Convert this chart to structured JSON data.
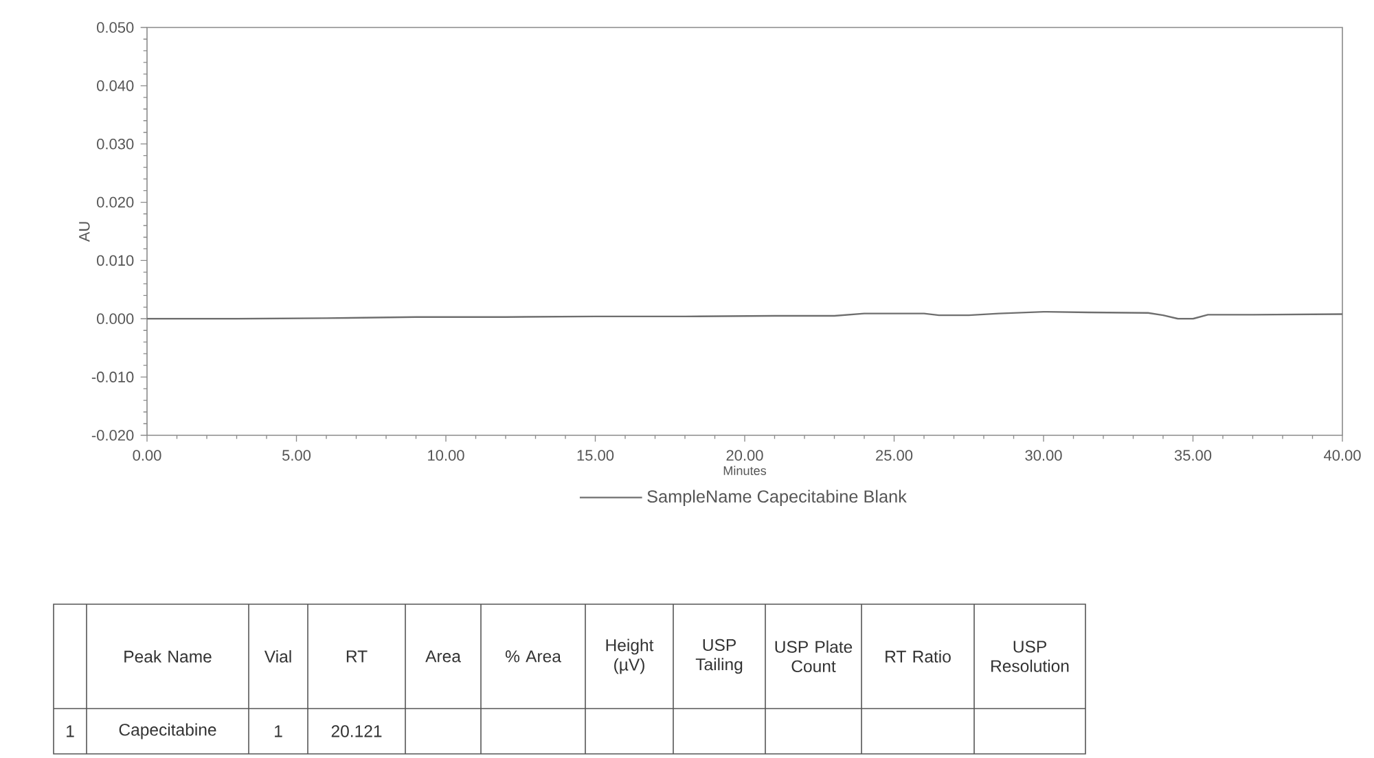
{
  "chart_data": {
    "type": "line",
    "xlabel": "Minutes",
    "ylabel": "AU",
    "x": [
      0,
      3,
      6,
      9,
      12,
      15,
      18,
      21,
      23,
      24,
      26,
      26.5,
      27.5,
      28.5,
      30,
      31.5,
      33.5,
      34,
      34.5,
      35,
      35.5,
      37,
      40
    ],
    "series": [
      {
        "name": "SampleName Capecitabine Blank",
        "color": "#6e6e6e",
        "values": [
          0.0,
          0.0,
          0.0001,
          0.0003,
          0.0003,
          0.0004,
          0.0004,
          0.0005,
          0.0005,
          0.0009,
          0.0009,
          0.0006,
          0.0006,
          0.0009,
          0.0012,
          0.0011,
          0.001,
          0.0006,
          0.0,
          0.0,
          0.0007,
          0.0007,
          0.0008
        ]
      }
    ],
    "xlim": [
      0,
      40
    ],
    "ylim": [
      -0.02,
      0.05
    ],
    "xticks": [
      {
        "value": 0,
        "label": "0.00"
      },
      {
        "value": 5,
        "label": "5.00"
      },
      {
        "value": 10,
        "label": "10.00"
      },
      {
        "value": 15,
        "label": "15.00"
      },
      {
        "value": 20,
        "label": "20.00"
      },
      {
        "value": 25,
        "label": "25.00"
      },
      {
        "value": 30,
        "label": "30.00"
      },
      {
        "value": 35,
        "label": "35.00"
      },
      {
        "value": 40,
        "label": "40.00"
      }
    ],
    "yticks": [
      {
        "value": -0.02,
        "label": "-0.020"
      },
      {
        "value": -0.01,
        "label": "-0.010"
      },
      {
        "value": 0,
        "label": "0.000"
      },
      {
        "value": 0.01,
        "label": "0.010"
      },
      {
        "value": 0.02,
        "label": "0.020"
      },
      {
        "value": 0.03,
        "label": "0.030"
      },
      {
        "value": 0.04,
        "label": "0.040"
      },
      {
        "value": 0.05,
        "label": "0.050"
      }
    ],
    "legend": "bottom",
    "annotations": [
      "Peak Name",
      "Vial",
      "RT",
      "Area",
      "% Area",
      "Height (µV)",
      "USP Tailing",
      "USP Plate Count",
      "RT Ratio",
      "USP Resolution",
      "1",
      "Capecitabine",
      "1",
      "20.121"
    ]
  }
}
